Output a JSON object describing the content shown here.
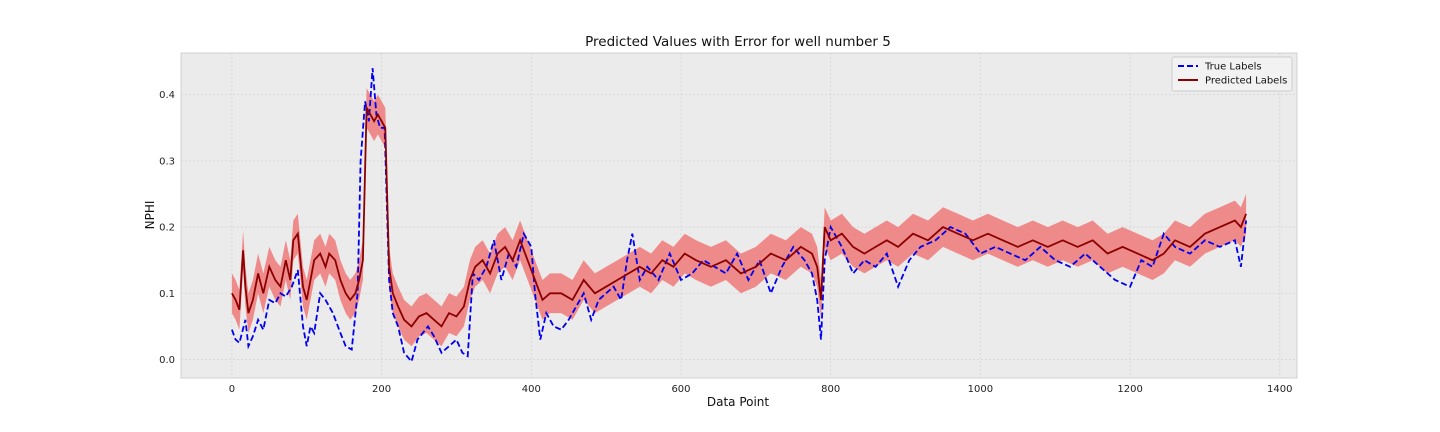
{
  "chart_data": {
    "type": "line",
    "title": "Predicted Values with Error for well number 5",
    "xlabel": "Data Point",
    "ylabel": "NPHI",
    "xlim": [
      -68,
      1423
    ],
    "ylim": [
      -0.028,
      0.463
    ],
    "xticks": [
      0,
      200,
      400,
      600,
      800,
      1000,
      1200,
      1400
    ],
    "xtick_labels": [
      "0",
      "200",
      "400",
      "600",
      "800",
      "1000",
      "1200",
      "1400"
    ],
    "yticks": [
      0.0,
      0.1,
      0.2,
      0.3,
      0.4
    ],
    "ytick_labels": [
      "0.0",
      "0.1",
      "0.2",
      "0.3",
      "0.4"
    ],
    "grid": true,
    "legend_position": "upper-right",
    "series": [
      {
        "name": "True Labels",
        "color": "#0000ee",
        "style": "dashed",
        "x": [
          0,
          5,
          10,
          18,
          22,
          28,
          35,
          42,
          50,
          58,
          65,
          72,
          80,
          88,
          95,
          100,
          105,
          110,
          118,
          125,
          135,
          145,
          152,
          160,
          168,
          172,
          178,
          183,
          188,
          193,
          198,
          204,
          210,
          215,
          222,
          230,
          240,
          248,
          255,
          262,
          270,
          280,
          290,
          300,
          308,
          315,
          322,
          330,
          340,
          350,
          360,
          370,
          380,
          390,
          400,
          405,
          412,
          420,
          430,
          440,
          450,
          460,
          470,
          480,
          490,
          500,
          510,
          520,
          528,
          535,
          545,
          555,
          570,
          585,
          600,
          615,
          630,
          645,
          660,
          675,
          690,
          705,
          720,
          735,
          750,
          765,
          775,
          782,
          787,
          792,
          800,
          815,
          830,
          845,
          860,
          875,
          890,
          905,
          920,
          940,
          960,
          980,
          1000,
          1020,
          1040,
          1060,
          1080,
          1100,
          1120,
          1140,
          1160,
          1180,
          1200,
          1215,
          1230,
          1245,
          1260,
          1280,
          1300,
          1320,
          1340,
          1348,
          1355
        ],
        "y": [
          0.045,
          0.03,
          0.025,
          0.06,
          0.02,
          0.035,
          0.06,
          0.045,
          0.09,
          0.085,
          0.1,
          0.095,
          0.11,
          0.135,
          0.05,
          0.02,
          0.05,
          0.04,
          0.1,
          0.09,
          0.07,
          0.04,
          0.02,
          0.015,
          0.1,
          0.3,
          0.39,
          0.36,
          0.44,
          0.37,
          0.35,
          0.35,
          0.12,
          0.07,
          0.05,
          0.01,
          -0.003,
          0.03,
          0.04,
          0.05,
          0.035,
          0.01,
          0.02,
          0.03,
          0.01,
          0.005,
          0.13,
          0.12,
          0.14,
          0.18,
          0.12,
          0.16,
          0.14,
          0.19,
          0.17,
          0.1,
          0.03,
          0.07,
          0.05,
          0.045,
          0.06,
          0.08,
          0.1,
          0.06,
          0.09,
          0.1,
          0.11,
          0.09,
          0.15,
          0.19,
          0.12,
          0.14,
          0.12,
          0.16,
          0.12,
          0.13,
          0.15,
          0.14,
          0.13,
          0.16,
          0.12,
          0.15,
          0.1,
          0.14,
          0.17,
          0.15,
          0.13,
          0.09,
          0.03,
          0.15,
          0.2,
          0.17,
          0.13,
          0.15,
          0.14,
          0.16,
          0.11,
          0.15,
          0.17,
          0.18,
          0.2,
          0.19,
          0.16,
          0.17,
          0.16,
          0.15,
          0.17,
          0.15,
          0.14,
          0.16,
          0.14,
          0.12,
          0.11,
          0.15,
          0.14,
          0.19,
          0.17,
          0.16,
          0.18,
          0.17,
          0.18,
          0.14,
          0.21
        ]
      },
      {
        "name": "Predicted Labels",
        "color": "#8b0000",
        "style": "solid",
        "error_band": true,
        "error_band_color": "#f08080",
        "error": 0.03,
        "x": [
          0,
          5,
          10,
          15,
          18,
          22,
          28,
          35,
          42,
          50,
          58,
          65,
          72,
          78,
          82,
          88,
          95,
          100,
          105,
          110,
          118,
          125,
          130,
          138,
          145,
          152,
          158,
          165,
          170,
          175,
          180,
          185,
          190,
          195,
          200,
          205,
          210,
          215,
          222,
          230,
          240,
          250,
          260,
          270,
          280,
          290,
          300,
          310,
          318,
          325,
          335,
          345,
          355,
          365,
          375,
          385,
          395,
          405,
          415,
          425,
          440,
          455,
          470,
          485,
          500,
          515,
          530,
          545,
          560,
          575,
          590,
          605,
          620,
          640,
          660,
          680,
          700,
          720,
          740,
          760,
          775,
          782,
          787,
          792,
          800,
          815,
          830,
          845,
          860,
          875,
          890,
          910,
          930,
          950,
          970,
          990,
          1010,
          1030,
          1050,
          1070,
          1090,
          1110,
          1130,
          1150,
          1170,
          1190,
          1210,
          1230,
          1245,
          1260,
          1280,
          1300,
          1320,
          1340,
          1348,
          1355
        ],
        "y": [
          0.1,
          0.09,
          0.075,
          0.165,
          0.11,
          0.07,
          0.09,
          0.13,
          0.1,
          0.14,
          0.12,
          0.11,
          0.15,
          0.12,
          0.18,
          0.19,
          0.11,
          0.09,
          0.12,
          0.15,
          0.16,
          0.14,
          0.16,
          0.15,
          0.12,
          0.1,
          0.09,
          0.1,
          0.12,
          0.15,
          0.38,
          0.37,
          0.36,
          0.37,
          0.36,
          0.35,
          0.14,
          0.1,
          0.08,
          0.06,
          0.05,
          0.065,
          0.07,
          0.06,
          0.05,
          0.07,
          0.065,
          0.08,
          0.12,
          0.14,
          0.15,
          0.13,
          0.16,
          0.17,
          0.15,
          0.18,
          0.15,
          0.12,
          0.09,
          0.1,
          0.1,
          0.09,
          0.12,
          0.1,
          0.11,
          0.12,
          0.13,
          0.14,
          0.13,
          0.15,
          0.14,
          0.16,
          0.15,
          0.14,
          0.15,
          0.13,
          0.14,
          0.16,
          0.15,
          0.17,
          0.16,
          0.14,
          0.09,
          0.2,
          0.18,
          0.19,
          0.17,
          0.16,
          0.17,
          0.18,
          0.17,
          0.19,
          0.18,
          0.2,
          0.19,
          0.18,
          0.19,
          0.18,
          0.17,
          0.18,
          0.17,
          0.18,
          0.17,
          0.18,
          0.16,
          0.17,
          0.16,
          0.15,
          0.16,
          0.18,
          0.17,
          0.19,
          0.2,
          0.21,
          0.2,
          0.22
        ]
      }
    ]
  }
}
